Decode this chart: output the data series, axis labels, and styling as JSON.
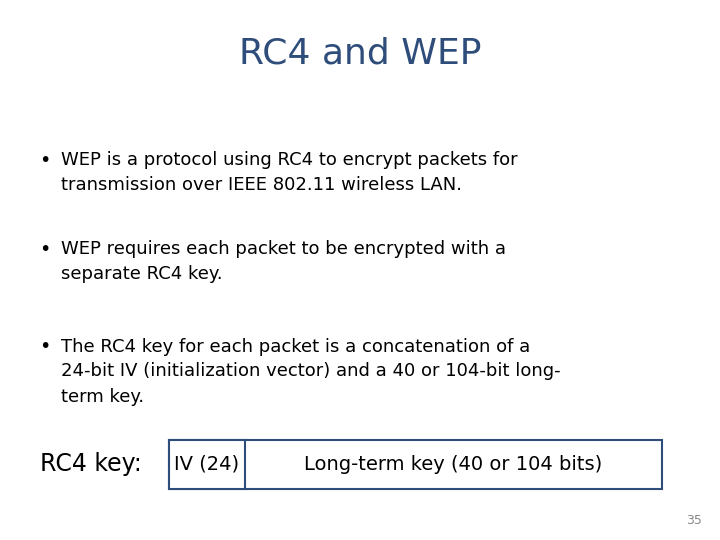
{
  "title": "RC4 and WEP",
  "title_color": "#2E4D7B",
  "title_fontsize": 26,
  "background_color": "#ffffff",
  "bullet_points": [
    "WEP is a protocol using RC4 to encrypt packets for\ntransmission over IEEE 802.11 wireless LAN.",
    "WEP requires each packet to be encrypted with a\nseparate RC4 key.",
    "The RC4 key for each packet is a concatenation of a\n24-bit IV (initialization vector) and a 40 or 104-bit long-\nterm key."
  ],
  "bullet_fontsize": 13,
  "bullet_color": "#000000",
  "rc4_label": "RC4 key:",
  "iv_label": "IV (24)",
  "longterm_label": "Long-term key (40 or 104 bits)",
  "box_color": "#2E4D7B",
  "diagram_fontsize": 14,
  "rc4_label_fontsize": 17,
  "page_number": "35",
  "page_color": "#888888"
}
